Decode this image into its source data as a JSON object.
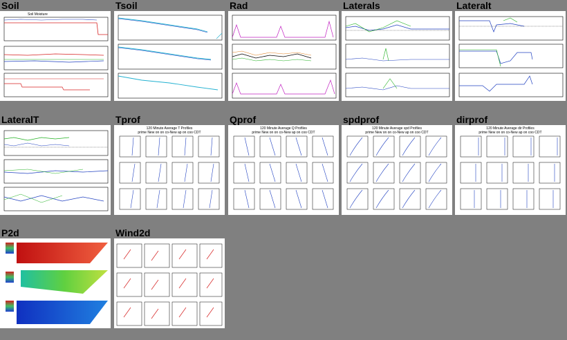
{
  "page": {
    "background": "#808080"
  },
  "tiles": [
    {
      "id": "soil",
      "title": "Soil"
    },
    {
      "id": "tsoil",
      "title": "Tsoil"
    },
    {
      "id": "rad",
      "title": "Rad"
    },
    {
      "id": "laterals",
      "title": "Laterals"
    },
    {
      "id": "lateralt",
      "title": "Lateralt"
    },
    {
      "id": "lateralT",
      "title": "LateralT"
    },
    {
      "id": "tprof",
      "title": "Tprof",
      "chart_title": "120 Minute Average T Profiles",
      "chart_subtitle": "prime New on on co-New ap on coo CDT"
    },
    {
      "id": "qprof",
      "title": "Qprof",
      "chart_title": "120 Minute Average Q Profiles",
      "chart_subtitle": "prime New on on co-New ap on coo CDT"
    },
    {
      "id": "spdprof",
      "title": "spdprof",
      "chart_title": "120 Minute Average spd Profiles",
      "chart_subtitle": "prime New on on co-New ap on coo CDT"
    },
    {
      "id": "dirprof",
      "title": "dirprof",
      "chart_title": "120 Minute Average dir Profiles",
      "chart_subtitle": "prime New on on co-New ap on coo CDT"
    },
    {
      "id": "p2d",
      "title": "P2d"
    },
    {
      "id": "wind2d",
      "title": "Wind2d"
    }
  ],
  "colors": {
    "series_red": "#d62020",
    "series_blue": "#2040c0",
    "series_green": "#20b020",
    "series_magenta": "#c020c0",
    "series_black": "#000000",
    "series_cyan": "#20b0d0",
    "series_orange": "#e08020",
    "p2d_top": "#e02020",
    "p2d_mid": "#40c060",
    "p2d_bottom": "#2050d0"
  }
}
